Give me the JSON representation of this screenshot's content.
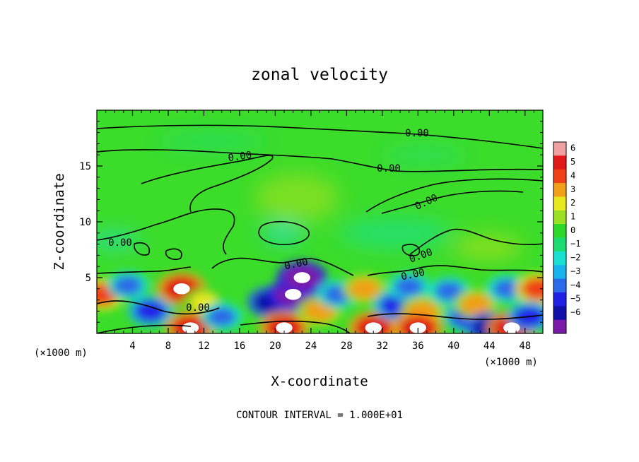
{
  "chart_data": {
    "type": "heatmap",
    "title": "zonal velocity",
    "xlabel": "X-coordinate",
    "ylabel": "Z-coordinate",
    "x_units_left": "(×1000 m)",
    "x_units_right": "(×1000 m)",
    "xlim": [
      0,
      50
    ],
    "ylim": [
      0,
      20
    ],
    "x_ticks": [
      4,
      8,
      12,
      16,
      20,
      24,
      28,
      32,
      36,
      40,
      44,
      48
    ],
    "y_ticks": [
      5,
      10,
      15
    ],
    "colorbar_levels": [
      -6,
      -5,
      -4,
      -3,
      -2,
      -1,
      0,
      1,
      2,
      3,
      4,
      5,
      6
    ],
    "colorbar_colors": [
      "#7a1aa8",
      "#1010a8",
      "#2020e6",
      "#2b6ae8",
      "#18b4ee",
      "#18e0d0",
      "#1cdc70",
      "#2ed82a",
      "#9ce024",
      "#e8e81c",
      "#f0a018",
      "#f04018",
      "#e01818",
      "#f0a0a0"
    ],
    "contour_label": "0.00",
    "footer": "CONTOUR INTERVAL = 1.000E+01",
    "lower_features": [
      {
        "x": 0.5,
        "z": 3.5,
        "u": 5
      },
      {
        "x": 3.5,
        "z": 4.3,
        "u": -3
      },
      {
        "x": 6.0,
        "z": 2.0,
        "u": -4
      },
      {
        "x": 9.5,
        "z": 4.0,
        "u": 6
      },
      {
        "x": 12.0,
        "z": 2.8,
        "u": 3
      },
      {
        "x": 10.5,
        "z": 0.5,
        "u": 6
      },
      {
        "x": 14.0,
        "z": 1.5,
        "u": -3
      },
      {
        "x": 19.5,
        "z": 2.8,
        "u": -5
      },
      {
        "x": 22.0,
        "z": 3.5,
        "u": -6
      },
      {
        "x": 23.0,
        "z": 5.0,
        "u": -6
      },
      {
        "x": 21.0,
        "z": 0.5,
        "u": 6
      },
      {
        "x": 25.0,
        "z": 2.0,
        "u": 4
      },
      {
        "x": 27.0,
        "z": 3.5,
        "u": -3
      },
      {
        "x": 30.0,
        "z": 4.0,
        "u": 4
      },
      {
        "x": 31.0,
        "z": 0.5,
        "u": 6
      },
      {
        "x": 33.5,
        "z": 2.5,
        "u": -4
      },
      {
        "x": 35.0,
        "z": 4.2,
        "u": -3
      },
      {
        "x": 36.5,
        "z": 2.0,
        "u": 4
      },
      {
        "x": 36.0,
        "z": 0.5,
        "u": 6
      },
      {
        "x": 39.5,
        "z": 3.8,
        "u": -3
      },
      {
        "x": 41.5,
        "z": 1.5,
        "u": -4
      },
      {
        "x": 42.5,
        "z": 2.6,
        "u": 4
      },
      {
        "x": 44.0,
        "z": 0.5,
        "u": -5
      },
      {
        "x": 46.0,
        "z": 4.0,
        "u": -3
      },
      {
        "x": 46.5,
        "z": 0.5,
        "u": 6
      },
      {
        "x": 49.5,
        "z": 4.0,
        "u": 5
      },
      {
        "x": 48.5,
        "z": 1.5,
        "u": -4
      }
    ]
  }
}
